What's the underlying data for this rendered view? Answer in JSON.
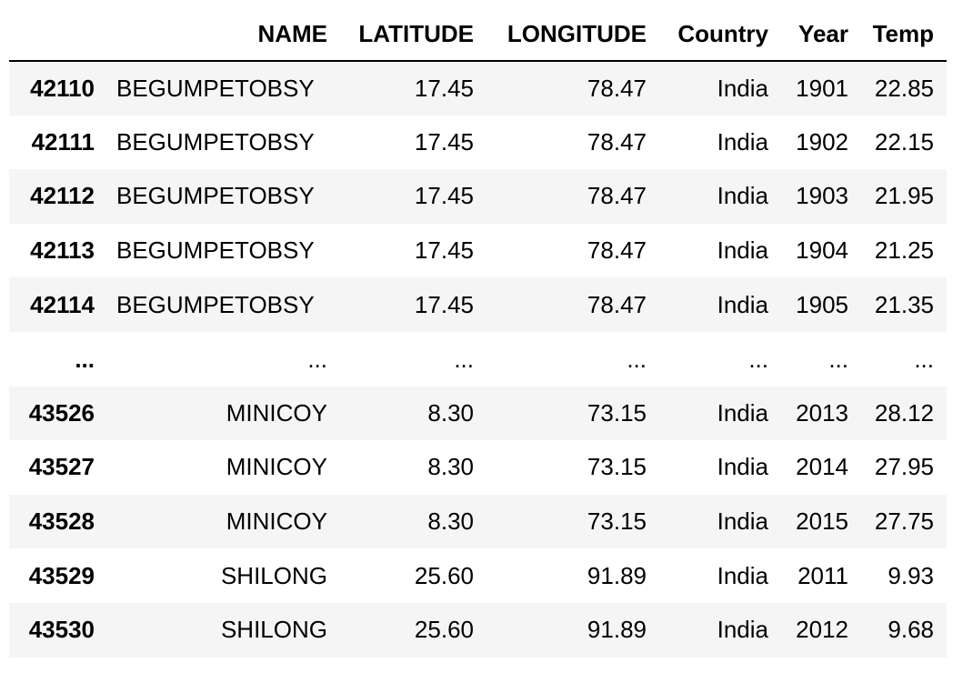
{
  "table": {
    "columns": [
      "",
      "NAME",
      "LATITUDE",
      "LONGITUDE",
      "Country",
      "Year",
      "Temp"
    ],
    "rows": [
      {
        "index": "42110",
        "name": "BEGUMPETOBSY",
        "latitude": "17.45",
        "longitude": "78.47",
        "country": "India",
        "year": "1901",
        "temp": "22.85"
      },
      {
        "index": "42111",
        "name": "BEGUMPETOBSY",
        "latitude": "17.45",
        "longitude": "78.47",
        "country": "India",
        "year": "1902",
        "temp": "22.15"
      },
      {
        "index": "42112",
        "name": "BEGUMPETOBSY",
        "latitude": "17.45",
        "longitude": "78.47",
        "country": "India",
        "year": "1903",
        "temp": "21.95"
      },
      {
        "index": "42113",
        "name": "BEGUMPETOBSY",
        "latitude": "17.45",
        "longitude": "78.47",
        "country": "India",
        "year": "1904",
        "temp": "21.25"
      },
      {
        "index": "42114",
        "name": "BEGUMPETOBSY",
        "latitude": "17.45",
        "longitude": "78.47",
        "country": "India",
        "year": "1905",
        "temp": "21.35"
      },
      {
        "index": "...",
        "name": "...",
        "latitude": "...",
        "longitude": "...",
        "country": "...",
        "year": "...",
        "temp": "..."
      },
      {
        "index": "43526",
        "name": "MINICOY",
        "latitude": "8.30",
        "longitude": "73.15",
        "country": "India",
        "year": "2013",
        "temp": "28.12"
      },
      {
        "index": "43527",
        "name": "MINICOY",
        "latitude": "8.30",
        "longitude": "73.15",
        "country": "India",
        "year": "2014",
        "temp": "27.95"
      },
      {
        "index": "43528",
        "name": "MINICOY",
        "latitude": "8.30",
        "longitude": "73.15",
        "country": "India",
        "year": "2015",
        "temp": "27.75"
      },
      {
        "index": "43529",
        "name": "SHILONG",
        "latitude": "25.60",
        "longitude": "91.89",
        "country": "India",
        "year": "2011",
        "temp": "9.93"
      },
      {
        "index": "43530",
        "name": "SHILONG",
        "latitude": "25.60",
        "longitude": "91.89",
        "country": "India",
        "year": "2012",
        "temp": "9.68"
      }
    ]
  },
  "colors": {
    "stripe": "#f5f5f5",
    "background": "#ffffff",
    "header_border": "#000000"
  }
}
